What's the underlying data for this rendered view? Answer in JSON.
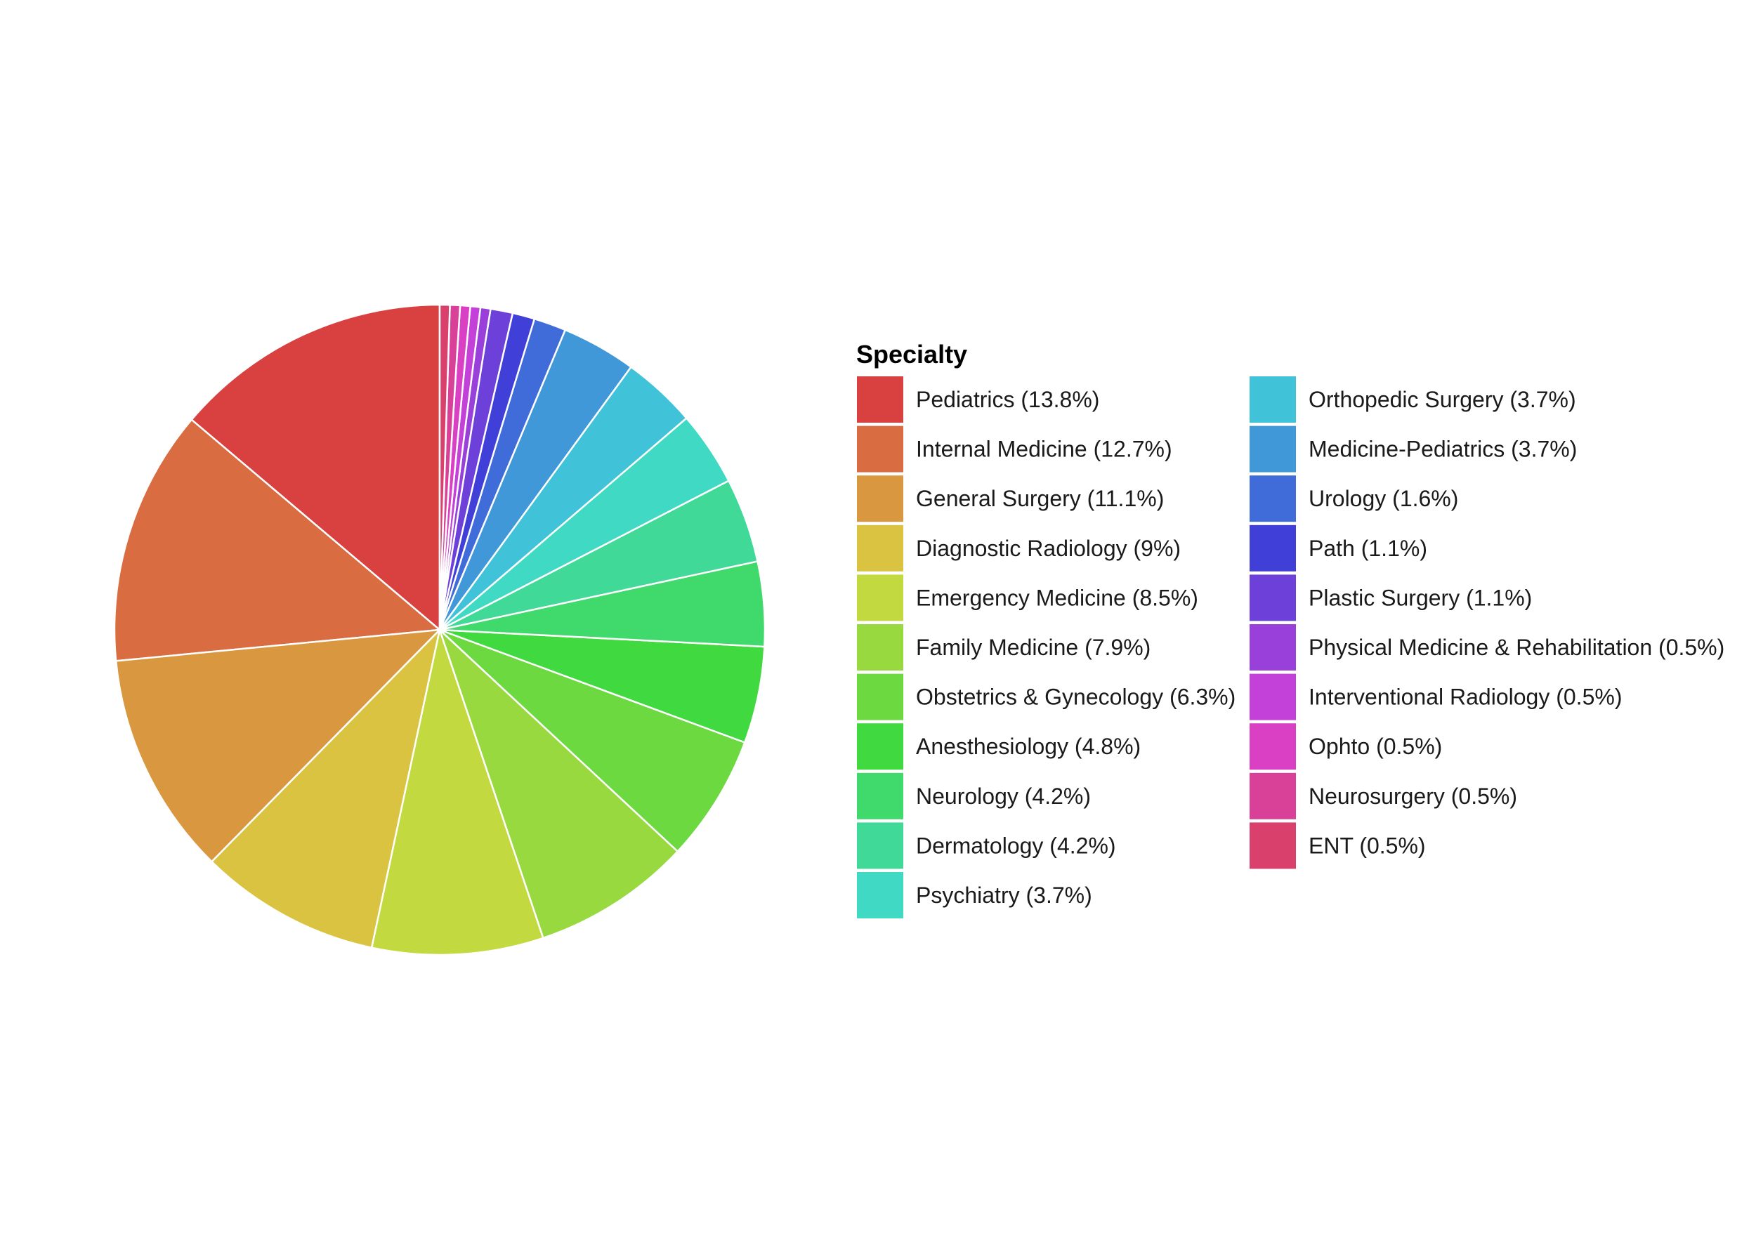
{
  "chart_data": {
    "type": "pie",
    "legend_title": "Specialty",
    "legend_position": "right",
    "start_angle": "top",
    "direction": "counterclockwise",
    "slices": [
      {
        "label": "Pediatrics (13.8%)",
        "value": 13.8,
        "color": "#D94040"
      },
      {
        "label": "Internal Medicine (12.7%)",
        "value": 12.7,
        "color": "#D96C40"
      },
      {
        "label": "General Surgery (11.1%)",
        "value": 11.1,
        "color": "#D99840"
      },
      {
        "label": "Diagnostic Radiology (9%)",
        "value": 9.0,
        "color": "#D9C340"
      },
      {
        "label": "Emergency Medicine (8.5%)",
        "value": 8.5,
        "color": "#C3D940"
      },
      {
        "label": "Family Medicine (7.9%)",
        "value": 7.9,
        "color": "#98D940"
      },
      {
        "label": "Obstetrics & Gynecology (6.3%)",
        "value": 6.3,
        "color": "#6CD940"
      },
      {
        "label": "Anesthesiology (4.8%)",
        "value": 4.8,
        "color": "#40D940"
      },
      {
        "label": "Neurology (4.2%)",
        "value": 4.2,
        "color": "#40D96C"
      },
      {
        "label": "Dermatology (4.2%)",
        "value": 4.2,
        "color": "#40D998"
      },
      {
        "label": "Psychiatry (3.7%)",
        "value": 3.7,
        "color": "#40D9C3"
      },
      {
        "label": "Orthopedic Surgery (3.7%)",
        "value": 3.7,
        "color": "#40C3D9"
      },
      {
        "label": "Medicine-Pediatrics (3.7%)",
        "value": 3.7,
        "color": "#4098D9"
      },
      {
        "label": "Urology (1.6%)",
        "value": 1.6,
        "color": "#406CD9"
      },
      {
        "label": "Path (1.1%)",
        "value": 1.1,
        "color": "#4040D9"
      },
      {
        "label": "Plastic Surgery (1.1%)",
        "value": 1.1,
        "color": "#6C40D9"
      },
      {
        "label": "Physical Medicine & Rehabilitation (0.5%)",
        "value": 0.5,
        "color": "#9840D9"
      },
      {
        "label": "Interventional Radiology (0.5%)",
        "value": 0.5,
        "color": "#C340D9"
      },
      {
        "label": "Ophto (0.5%)",
        "value": 0.5,
        "color": "#D940C3"
      },
      {
        "label": "Neurosurgery (0.5%)",
        "value": 0.5,
        "color": "#D94098"
      },
      {
        "label": "ENT (0.5%)",
        "value": 0.5,
        "color": "#D9406C"
      }
    ]
  }
}
